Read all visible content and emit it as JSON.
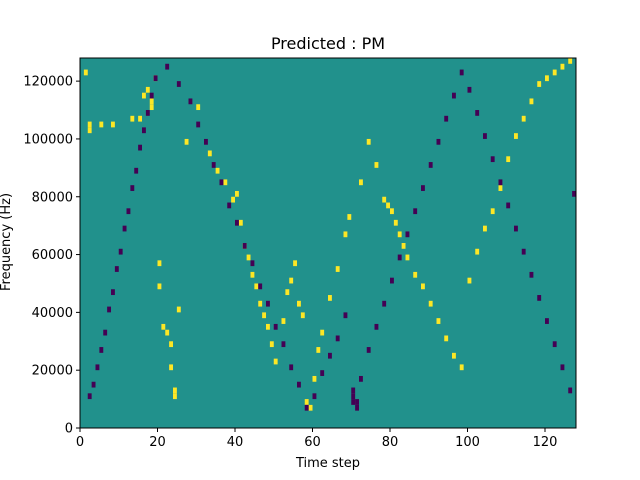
{
  "chart_data": {
    "type": "heatmap",
    "title": "Predicted : PM",
    "xlabel": "Time step",
    "ylabel": "Frequency (Hz)",
    "xlim": [
      0,
      128
    ],
    "ylim": [
      0,
      128000
    ],
    "xticks": [
      0,
      20,
      40,
      60,
      80,
      100,
      120
    ],
    "yticks": [
      0,
      20000,
      40000,
      60000,
      80000,
      100000,
      120000
    ],
    "n_time_steps": 128,
    "n_freq_bins": 64,
    "background_value": 0,
    "colormap": {
      "-1": "#440154",
      "0": "#21918c",
      "1": "#fde725"
    },
    "yellow_cells": [
      [
        1,
        61
      ],
      [
        2,
        51
      ],
      [
        2,
        52
      ],
      [
        5,
        52
      ],
      [
        8,
        52
      ],
      [
        13,
        53
      ],
      [
        15,
        53
      ],
      [
        16,
        57
      ],
      [
        17,
        58
      ],
      [
        18,
        55
      ],
      [
        18,
        56
      ],
      [
        19,
        60
      ],
      [
        20,
        28
      ],
      [
        20,
        24
      ],
      [
        21,
        17
      ],
      [
        22,
        16
      ],
      [
        23,
        14
      ],
      [
        23,
        10
      ],
      [
        24,
        5
      ],
      [
        24,
        6
      ],
      [
        25,
        20
      ],
      [
        27,
        49
      ],
      [
        30,
        55
      ],
      [
        33,
        47
      ],
      [
        35,
        44
      ],
      [
        37,
        42
      ],
      [
        39,
        39
      ],
      [
        40,
        40
      ],
      [
        41,
        35
      ],
      [
        42,
        31
      ],
      [
        43,
        29
      ],
      [
        44,
        26
      ],
      [
        45,
        24
      ],
      [
        46,
        21
      ],
      [
        47,
        19
      ],
      [
        48,
        17
      ],
      [
        49,
        14
      ],
      [
        50,
        11
      ],
      [
        52,
        18
      ],
      [
        53,
        23
      ],
      [
        54,
        25
      ],
      [
        55,
        28
      ],
      [
        56,
        21
      ],
      [
        57,
        19
      ],
      [
        58,
        4
      ],
      [
        59,
        3
      ],
      [
        60,
        8
      ],
      [
        61,
        13
      ],
      [
        62,
        16
      ],
      [
        64,
        22
      ],
      [
        66,
        27
      ],
      [
        68,
        33
      ],
      [
        69,
        36
      ],
      [
        72,
        42
      ],
      [
        74,
        49
      ],
      [
        76,
        45
      ],
      [
        78,
        39
      ],
      [
        79,
        38
      ],
      [
        80,
        37
      ],
      [
        81,
        35
      ],
      [
        82,
        33
      ],
      [
        83,
        31
      ],
      [
        84,
        29
      ],
      [
        86,
        26
      ],
      [
        88,
        24
      ],
      [
        90,
        21
      ],
      [
        92,
        18
      ],
      [
        94,
        15
      ],
      [
        96,
        12
      ],
      [
        98,
        10
      ],
      [
        100,
        25
      ],
      [
        102,
        30
      ],
      [
        104,
        34
      ],
      [
        106,
        37
      ],
      [
        108,
        41
      ],
      [
        110,
        46
      ],
      [
        112,
        50
      ],
      [
        114,
        53
      ],
      [
        116,
        56
      ],
      [
        118,
        59
      ],
      [
        120,
        60
      ],
      [
        122,
        61
      ],
      [
        124,
        62
      ],
      [
        126,
        63
      ]
    ],
    "purple_cells": [
      [
        2,
        5
      ],
      [
        3,
        7
      ],
      [
        4,
        10
      ],
      [
        5,
        13
      ],
      [
        6,
        16
      ],
      [
        7,
        20
      ],
      [
        8,
        23
      ],
      [
        9,
        27
      ],
      [
        10,
        30
      ],
      [
        11,
        34
      ],
      [
        12,
        37
      ],
      [
        13,
        41
      ],
      [
        14,
        44
      ],
      [
        15,
        48
      ],
      [
        16,
        51
      ],
      [
        17,
        54
      ],
      [
        18,
        57
      ],
      [
        19,
        60
      ],
      [
        22,
        62
      ],
      [
        25,
        59
      ],
      [
        28,
        56
      ],
      [
        30,
        52
      ],
      [
        32,
        49
      ],
      [
        34,
        45
      ],
      [
        36,
        42
      ],
      [
        38,
        38
      ],
      [
        40,
        35
      ],
      [
        42,
        31
      ],
      [
        44,
        28
      ],
      [
        46,
        24
      ],
      [
        48,
        21
      ],
      [
        50,
        17
      ],
      [
        52,
        14
      ],
      [
        54,
        10
      ],
      [
        56,
        7
      ],
      [
        58,
        3
      ],
      [
        60,
        5
      ],
      [
        62,
        9
      ],
      [
        64,
        12
      ],
      [
        66,
        15
      ],
      [
        68,
        19
      ],
      [
        70,
        4
      ],
      [
        70,
        5
      ],
      [
        70,
        6
      ],
      [
        71,
        3
      ],
      [
        71,
        4
      ],
      [
        72,
        8
      ],
      [
        74,
        13
      ],
      [
        76,
        17
      ],
      [
        78,
        21
      ],
      [
        80,
        25
      ],
      [
        82,
        29
      ],
      [
        84,
        33
      ],
      [
        86,
        37
      ],
      [
        88,
        41
      ],
      [
        90,
        45
      ],
      [
        92,
        49
      ],
      [
        94,
        53
      ],
      [
        96,
        57
      ],
      [
        98,
        61
      ],
      [
        100,
        58
      ],
      [
        102,
        54
      ],
      [
        104,
        50
      ],
      [
        106,
        46
      ],
      [
        108,
        42
      ],
      [
        110,
        38
      ],
      [
        112,
        34
      ],
      [
        114,
        30
      ],
      [
        116,
        26
      ],
      [
        118,
        22
      ],
      [
        120,
        18
      ],
      [
        122,
        14
      ],
      [
        124,
        10
      ],
      [
        126,
        6
      ],
      [
        127,
        40
      ]
    ]
  }
}
